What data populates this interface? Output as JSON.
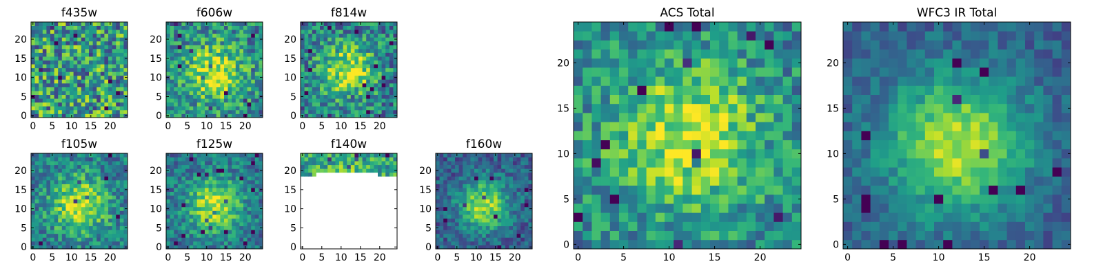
{
  "chart_data": {
    "type": "heatmap",
    "colormap": "viridis",
    "grid": false,
    "panels": [
      {
        "title": "f435w",
        "xticks": [
          "0",
          "5",
          "10",
          "15",
          "20"
        ],
        "yticks": [
          "0",
          "5",
          "10",
          "15",
          "20"
        ],
        "coverage": "full",
        "peak": [
          12,
          12
        ],
        "spread": 0,
        "noise": 0.75,
        "base": 0.55
      },
      {
        "title": "f606w",
        "xticks": [
          "0",
          "5",
          "10",
          "15",
          "20"
        ],
        "yticks": [
          "0",
          "5",
          "10",
          "15",
          "20"
        ],
        "coverage": "full",
        "peak": [
          12,
          11
        ],
        "spread": 5.5,
        "noise": 0.55,
        "base": 0.45
      },
      {
        "title": "f814w",
        "xticks": [
          "0",
          "5",
          "10",
          "15",
          "20"
        ],
        "yticks": [
          "0",
          "5",
          "10",
          "15",
          "20"
        ],
        "coverage": "full",
        "peak": [
          12,
          12
        ],
        "spread": 5.0,
        "noise": 0.55,
        "base": 0.42
      },
      {
        "title": "f105w",
        "xticks": [
          "0",
          "5",
          "10",
          "15",
          "20"
        ],
        "yticks": [
          "0",
          "5",
          "10",
          "15",
          "20"
        ],
        "coverage": "full",
        "peak": [
          12,
          11
        ],
        "spread": 5.5,
        "noise": 0.45,
        "base": 0.4
      },
      {
        "title": "f125w",
        "xticks": [
          "0",
          "5",
          "10",
          "15",
          "20"
        ],
        "yticks": [
          "0",
          "5",
          "10",
          "15",
          "20"
        ],
        "coverage": "full",
        "peak": [
          12,
          11
        ],
        "spread": 5.0,
        "noise": 0.4,
        "base": 0.38
      },
      {
        "title": "f140w",
        "xticks": [
          "0",
          "5",
          "10",
          "15",
          "20"
        ],
        "yticks": [
          "0",
          "5",
          "10",
          "15",
          "20"
        ],
        "coverage": "partial-top",
        "peak": [
          12,
          12
        ],
        "spread": 6.0,
        "noise": 0.5,
        "base": 0.55
      },
      {
        "title": "f160w",
        "xticks": [
          "0",
          "5",
          "10",
          "15",
          "20"
        ],
        "yticks": [
          "0",
          "5",
          "10",
          "15",
          "20"
        ],
        "coverage": "full",
        "peak": [
          12,
          11
        ],
        "spread": 4.5,
        "noise": 0.35,
        "base": 0.3
      },
      {
        "title": "ACS Total",
        "xticks": [
          "0",
          "5",
          "10",
          "15",
          "20"
        ],
        "yticks": [
          "0",
          "5",
          "10",
          "15",
          "20"
        ],
        "coverage": "full",
        "peak": [
          12,
          12
        ],
        "spread": 6.0,
        "noise": 0.45,
        "base": 0.45
      },
      {
        "title": "WFC3 IR Total",
        "xticks": [
          "0",
          "5",
          "10",
          "15",
          "20"
        ],
        "yticks": [
          "0",
          "5",
          "10",
          "15",
          "20"
        ],
        "coverage": "full",
        "peak": [
          12,
          11
        ],
        "spread": 5.5,
        "noise": 0.25,
        "base": 0.3
      }
    ],
    "grid_size": 25,
    "xlim": [
      0,
      25
    ],
    "ylim": [
      0,
      25
    ]
  }
}
